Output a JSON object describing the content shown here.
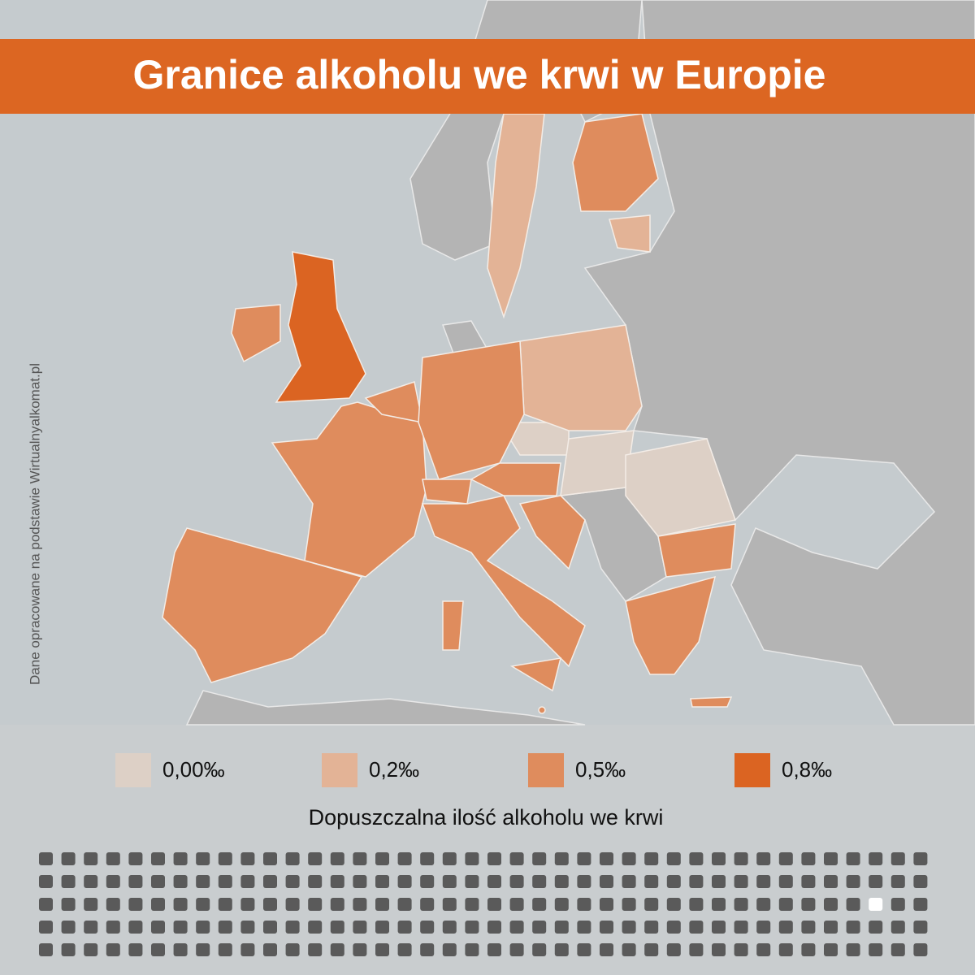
{
  "title": "Granice alkoholu we krwi w Europie",
  "source_note": "Dane opracowane na podstawie Wirtualnyalkomat.pl",
  "legend": [
    {
      "label": "0,00‰",
      "color": "#ddd0c6"
    },
    {
      "label": "0,2‰",
      "color": "#e3b396"
    },
    {
      "label": "0,5‰",
      "color": "#df8c5d"
    },
    {
      "label": "0,8‰",
      "color": "#db6422"
    }
  ],
  "legend_title": "Dopuszczalna ilość alkoholu we krwi"
}
